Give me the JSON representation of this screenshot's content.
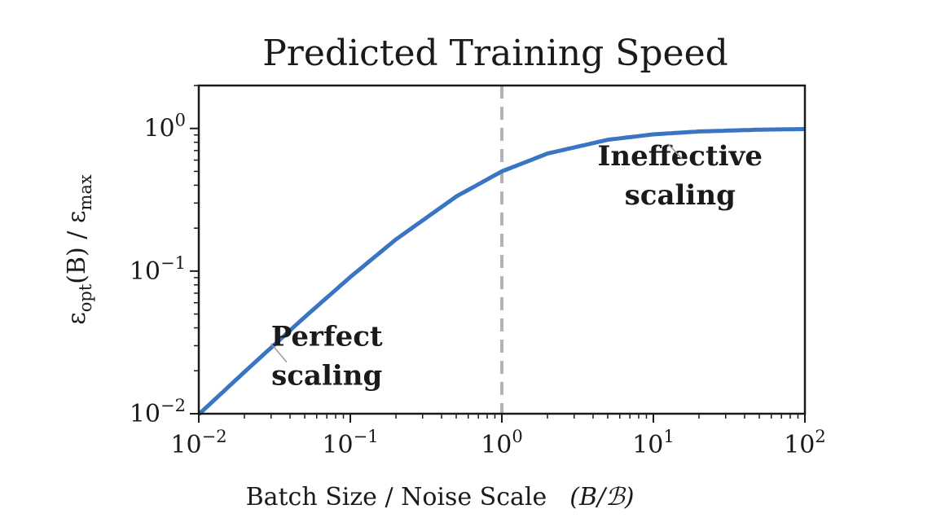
{
  "chart_data": {
    "type": "line",
    "title": "Predicted Training Speed",
    "xlabel": "Batch Size / Noise Scale",
    "xlabel_suffix": "(B/ℬ)",
    "ylabel_parts": [
      "ε",
      "opt",
      "(B) / ε",
      "max"
    ],
    "x_scale": "log",
    "y_scale": "log",
    "xlim": [
      0.01,
      100
    ],
    "ylim": [
      0.01,
      2
    ],
    "x_ticks": [
      {
        "value": 0.01,
        "base": "10",
        "exp": "−2"
      },
      {
        "value": 0.1,
        "base": "10",
        "exp": "−1"
      },
      {
        "value": 1,
        "base": "10",
        "exp": "0"
      },
      {
        "value": 10,
        "base": "10",
        "exp": "1"
      },
      {
        "value": 100,
        "base": "10",
        "exp": "2"
      }
    ],
    "y_ticks": [
      {
        "value": 0.01,
        "base": "10",
        "exp": "−2"
      },
      {
        "value": 0.1,
        "base": "10",
        "exp": "−1"
      },
      {
        "value": 1,
        "base": "10",
        "exp": "0"
      }
    ],
    "grid": false,
    "series": [
      {
        "color": "#3a75c4",
        "x": [
          0.01,
          0.02,
          0.05,
          0.1,
          0.2,
          0.5,
          1,
          2,
          5,
          10,
          20,
          50,
          100
        ],
        "y": [
          0.0099,
          0.0196,
          0.0476,
          0.0909,
          0.1667,
          0.3333,
          0.5,
          0.6667,
          0.8333,
          0.9091,
          0.9524,
          0.9804,
          0.9901
        ]
      }
    ],
    "reference_line": {
      "axis": "x",
      "value": 1,
      "style": "dashed",
      "color": "#b3b3b3"
    },
    "annotations": [
      {
        "lines": [
          "Perfect",
          "scaling"
        ],
        "x": 0.07,
        "y": 0.03
      },
      {
        "lines": [
          "Ineffective",
          "scaling"
        ],
        "x": 15,
        "y": 0.55
      }
    ]
  }
}
